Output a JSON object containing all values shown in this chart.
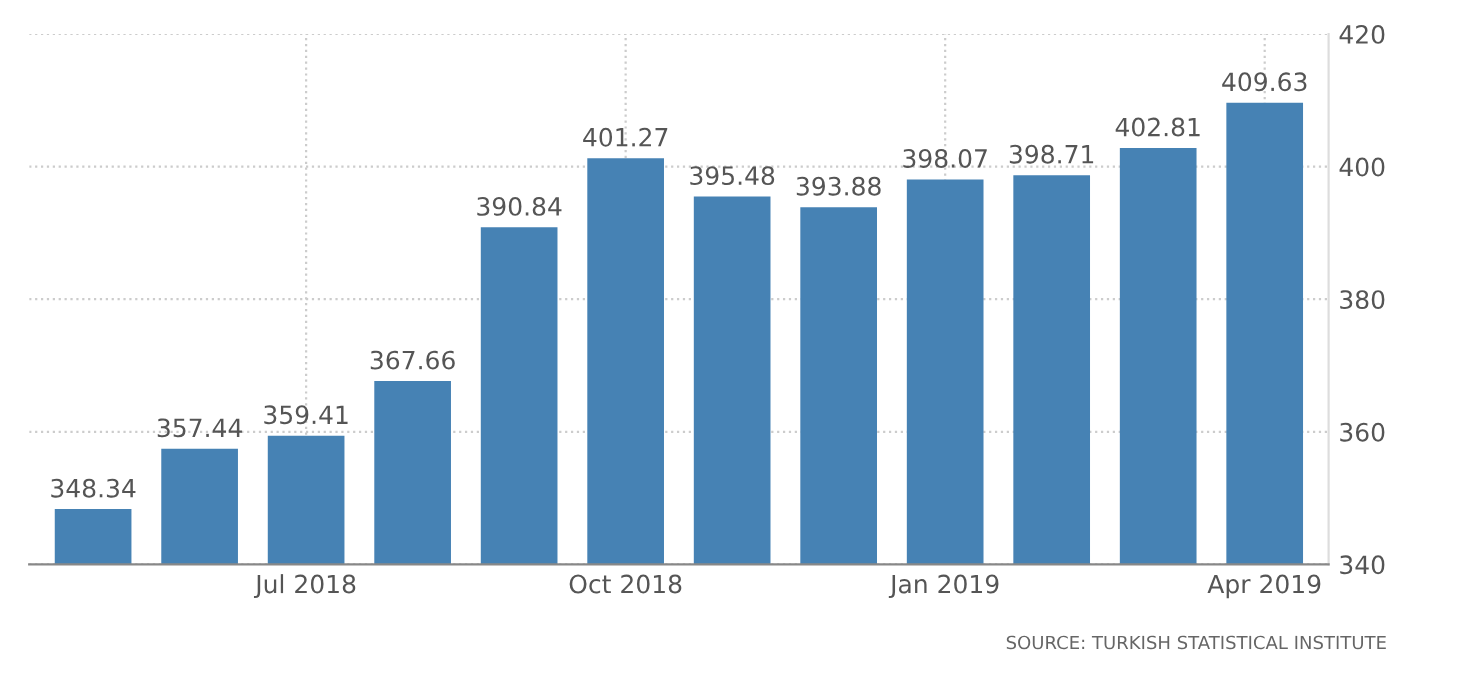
{
  "chart_data": {
    "type": "bar",
    "categories": [
      null,
      null,
      "Jul 2018",
      null,
      null,
      "Oct 2018",
      null,
      null,
      "Jan 2019",
      null,
      null,
      "Apr 2019"
    ],
    "values": [
      348.34,
      357.44,
      359.41,
      367.66,
      390.84,
      401.27,
      395.48,
      393.88,
      398.07,
      398.71,
      402.81,
      409.63
    ],
    "color": "#4682b4",
    "data_labels": true,
    "ylim": [
      340,
      420
    ],
    "yticks": [
      340,
      360,
      380,
      400,
      420
    ],
    "grid": true,
    "annotations": [
      "SOURCE: TURKISH STATISTICAL INSTITUTE"
    ]
  }
}
